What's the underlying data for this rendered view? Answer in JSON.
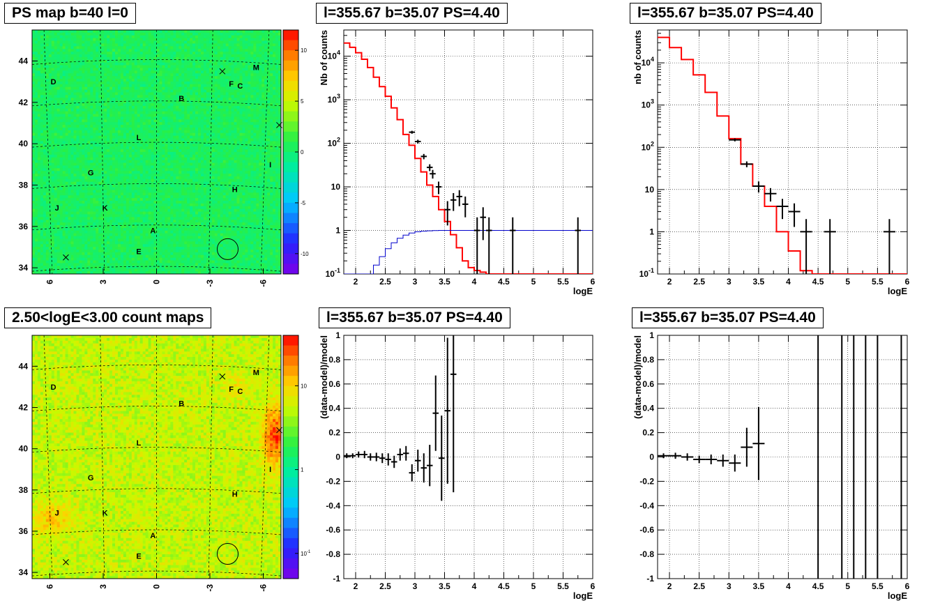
{
  "colors": {
    "data": "#000000",
    "model": "#ff0000",
    "efficiency": "#0000cc",
    "grid": "#000000",
    "circle": "#000000"
  },
  "panels": {
    "map_top_title": "PS map b=40 l=0",
    "spec_top_title": "l=355.67 b=35.07 PS=4.40",
    "spec_top2_title": "l=355.67 b=35.07 PS=4.40",
    "map_bottom_title": "2.50<logE<3.00 count maps",
    "res_title": "l=355.67 b=35.07 PS=4.40",
    "res2_title": "l=355.67 b=35.07 PS=4.40"
  },
  "chart_data": [
    {
      "id": "map_top",
      "type": "heatmap",
      "title": "PS map b=40 l=0",
      "x_ticks": [
        "6",
        "3",
        "0",
        "-3",
        "-6"
      ],
      "y_ticks": [
        "34",
        "36",
        "38",
        "40",
        "42",
        "44"
      ],
      "colorbar_ticks": [
        "10",
        "5",
        "0",
        "-5",
        "-10"
      ],
      "zlim": [
        -12,
        12
      ],
      "colormap": "rainbow",
      "labels": [
        {
          "text": "D",
          "l": 5.8,
          "b": 43.0
        },
        {
          "text": "M",
          "l": -5.6,
          "b": 43.7
        },
        {
          "text": "F",
          "l": -4.2,
          "b": 42.9
        },
        {
          "text": "C",
          "l": -4.7,
          "b": 42.8
        },
        {
          "text": "B",
          "l": -1.4,
          "b": 42.2
        },
        {
          "text": "L",
          "l": 1.0,
          "b": 40.3
        },
        {
          "text": "G",
          "l": 3.7,
          "b": 38.6
        },
        {
          "text": "I",
          "l": -6.4,
          "b": 39.0
        },
        {
          "text": "H",
          "l": -4.4,
          "b": 37.8
        },
        {
          "text": "J",
          "l": 5.6,
          "b": 36.9
        },
        {
          "text": "K",
          "l": 2.9,
          "b": 36.9
        },
        {
          "text": "A",
          "l": 0.2,
          "b": 35.8
        },
        {
          "text": "E",
          "l": 1.0,
          "b": 34.8
        }
      ],
      "markers": [
        {
          "l": -3.7,
          "b": 43.5
        },
        {
          "l": -6.9,
          "b": 40.9
        },
        {
          "l": 5.1,
          "b": 34.5
        }
      ],
      "circle": {
        "l": -4.0,
        "b": 34.9
      }
    },
    {
      "id": "spec_top",
      "type": "line",
      "title": "l=355.67 b=35.07 PS=4.40",
      "xlabel": "logE",
      "ylabel": "Nb of counts",
      "xlim": [
        1.8,
        6.0
      ],
      "ylim": [
        0.1,
        40000
      ],
      "yscale": "log",
      "grid": true,
      "x_ticks": [
        "2",
        "2.5",
        "3",
        "3.5",
        "4",
        "4.5",
        "5",
        "5.5",
        "6"
      ],
      "y_ticks": [
        "10^-1",
        "1",
        "10",
        "10^2",
        "10^3",
        "10^4"
      ],
      "series": [
        {
          "kind": "step",
          "role": "model",
          "edges": [
            1.8,
            1.9,
            2.0,
            2.1,
            2.2,
            2.3,
            2.4,
            2.5,
            2.6,
            2.7,
            2.8,
            2.9,
            3.0,
            3.1,
            3.2,
            3.3,
            3.4,
            3.5,
            3.6,
            3.7,
            3.8,
            3.9,
            4.0,
            4.1,
            4.2,
            4.3,
            6.0
          ],
          "values": [
            20000,
            16000,
            12000,
            8500,
            5500,
            3300,
            2000,
            1200,
            650,
            350,
            160,
            90,
            45,
            22,
            11,
            6,
            3,
            1.6,
            0.8,
            0.4,
            0.2,
            0.14,
            0.12,
            0.11,
            0.1,
            0.1
          ]
        },
        {
          "kind": "step",
          "role": "efficiency",
          "edges": [
            1.8,
            2.3,
            2.4,
            2.5,
            2.6,
            2.7,
            2.8,
            2.9,
            3.0,
            3.1,
            3.2,
            3.3,
            3.4,
            3.5,
            6.0
          ],
          "values": [
            0.1,
            0.16,
            0.25,
            0.38,
            0.52,
            0.66,
            0.78,
            0.87,
            0.93,
            0.96,
            0.98,
            0.99,
            1.0,
            1.0
          ]
        },
        {
          "kind": "points",
          "role": "data",
          "x": [
            2.95,
            3.05,
            3.15,
            3.25,
            3.3,
            3.4,
            3.55,
            3.65,
            3.75,
            3.85,
            4.05,
            4.15,
            4.25,
            4.65,
            5.75
          ],
          "y": [
            180,
            110,
            50,
            28,
            20,
            10,
            3,
            5,
            6,
            4,
            1,
            2,
            1,
            1,
            1
          ],
          "yerr": [
            14,
            11,
            7,
            5,
            4.5,
            3.2,
            1.7,
            2.2,
            2.4,
            2.0,
            1.0,
            1.4,
            1.0,
            1.0,
            1.0
          ],
          "xerr": 0.05
        }
      ]
    },
    {
      "id": "spec_top2",
      "type": "line",
      "title": "l=355.67 b=35.07 PS=4.40",
      "xlabel": "logE",
      "ylabel": "nb of counts",
      "xlim": [
        1.8,
        6.0
      ],
      "ylim": [
        0.1,
        60000
      ],
      "yscale": "log",
      "grid": true,
      "x_ticks": [
        "2",
        "2.5",
        "3",
        "3.5",
        "4",
        "4.5",
        "5",
        "5.5",
        "6"
      ],
      "y_ticks": [
        "10^-1",
        "1",
        "10",
        "10^2",
        "10^3",
        "10^4"
      ],
      "series": [
        {
          "kind": "step",
          "role": "model",
          "edges": [
            1.8,
            2.0,
            2.2,
            2.4,
            2.6,
            2.8,
            3.0,
            3.2,
            3.4,
            3.6,
            3.8,
            4.0,
            4.2,
            4.4,
            6.0
          ],
          "values": [
            40000,
            23000,
            12000,
            5200,
            2000,
            550,
            160,
            40,
            12,
            4,
            1,
            0.35,
            0.12,
            0.1
          ]
        },
        {
          "kind": "points",
          "role": "data",
          "x": [
            3.1,
            3.3,
            3.5,
            3.7,
            3.9,
            4.1,
            4.3,
            4.7,
            5.7
          ],
          "y": [
            150,
            40,
            12,
            8,
            4,
            3,
            1,
            1,
            1
          ],
          "yerr": [
            12,
            6.3,
            3.5,
            2.8,
            2.0,
            1.7,
            1.0,
            1.0,
            1.0
          ],
          "xerr": 0.1
        }
      ]
    },
    {
      "id": "map_bottom",
      "type": "heatmap",
      "title": "2.50<logE<3.00 count maps",
      "x_ticks": [
        "6",
        "3",
        "0",
        "-3",
        "-6"
      ],
      "y_ticks": [
        "34",
        "36",
        "38",
        "40",
        "42",
        "44"
      ],
      "colorbar_ticks": [
        "10",
        "1",
        "10^-1"
      ],
      "zlim": [
        0.05,
        40
      ],
      "zscale": "log",
      "colormap": "rainbow",
      "labels": [
        {
          "text": "D",
          "l": 5.8,
          "b": 43.0
        },
        {
          "text": "M",
          "l": -5.6,
          "b": 43.7
        },
        {
          "text": "F",
          "l": -4.2,
          "b": 42.9
        },
        {
          "text": "C",
          "l": -4.7,
          "b": 42.8
        },
        {
          "text": "B",
          "l": -1.4,
          "b": 42.2
        },
        {
          "text": "L",
          "l": 1.0,
          "b": 40.3
        },
        {
          "text": "G",
          "l": 3.7,
          "b": 38.6
        },
        {
          "text": "I",
          "l": -6.4,
          "b": 39.0
        },
        {
          "text": "H",
          "l": -4.4,
          "b": 37.8
        },
        {
          "text": "J",
          "l": 5.6,
          "b": 36.9
        },
        {
          "text": "K",
          "l": 2.9,
          "b": 36.9
        },
        {
          "text": "A",
          "l": 0.2,
          "b": 35.8
        },
        {
          "text": "E",
          "l": 1.0,
          "b": 34.8
        }
      ],
      "markers": [
        {
          "l": -3.7,
          "b": 43.5
        },
        {
          "l": -6.9,
          "b": 40.9
        },
        {
          "l": 5.1,
          "b": 34.5
        }
      ],
      "circle": {
        "l": -4.0,
        "b": 34.9
      }
    },
    {
      "id": "res",
      "type": "scatter",
      "title": "l=355.67 b=35.07 PS=4.40",
      "xlabel": "logE",
      "ylabel": "(data-model)/model",
      "xlim": [
        1.8,
        6.0
      ],
      "ylim": [
        -1,
        1
      ],
      "grid": true,
      "x_ticks": [
        "2",
        "2.5",
        "3",
        "3.5",
        "4",
        "4.5",
        "5",
        "5.5",
        "6"
      ],
      "y_ticks": [
        "-1",
        "-0.8",
        "-0.6",
        "-0.4",
        "-0.2",
        "0",
        "0.2",
        "0.4",
        "0.6",
        "0.8",
        "1"
      ],
      "series": [
        {
          "kind": "points",
          "role": "data",
          "x": [
            1.85,
            1.95,
            2.05,
            2.15,
            2.25,
            2.35,
            2.45,
            2.55,
            2.65,
            2.75,
            2.85,
            2.95,
            3.05,
            3.15,
            3.25,
            3.35,
            3.45,
            3.55,
            3.65
          ],
          "y": [
            0.01,
            0.01,
            0.02,
            0.02,
            0.0,
            0.0,
            -0.01,
            -0.02,
            -0.04,
            0.02,
            0.03,
            -0.13,
            -0.03,
            -0.09,
            -0.07,
            0.36,
            -0.01,
            0.38,
            0.68
          ],
          "yerr": [
            0.02,
            0.02,
            0.025,
            0.03,
            0.03,
            0.035,
            0.04,
            0.05,
            0.05,
            0.05,
            0.06,
            0.07,
            0.09,
            0.12,
            0.17,
            0.31,
            0.35,
            0.6,
            0.97
          ],
          "xerr": 0.05
        }
      ]
    },
    {
      "id": "res2",
      "type": "scatter",
      "title": "l=355.67 b=35.07 PS=4.40",
      "xlabel": "logE",
      "ylabel": "(data-model)/model",
      "xlim": [
        1.8,
        6.0
      ],
      "ylim": [
        -1,
        1
      ],
      "grid": true,
      "x_ticks": [
        "2",
        "2.5",
        "3",
        "3.5",
        "4",
        "4.5",
        "5",
        "5.5",
        "6"
      ],
      "y_ticks": [
        "-1",
        "-0.8",
        "-0.6",
        "-0.4",
        "-0.2",
        "0",
        "0.2",
        "0.4",
        "0.6",
        "0.8",
        "1"
      ],
      "series": [
        {
          "kind": "points",
          "role": "data",
          "x": [
            1.9,
            2.1,
            2.3,
            2.5,
            2.7,
            2.9,
            3.1,
            3.3,
            3.5
          ],
          "y": [
            0.01,
            0.01,
            0.0,
            -0.02,
            -0.02,
            -0.03,
            -0.05,
            0.08,
            0.11
          ],
          "yerr": [
            0.02,
            0.025,
            0.03,
            0.03,
            0.04,
            0.05,
            0.07,
            0.16,
            0.3
          ],
          "xerr": 0.1
        },
        {
          "kind": "vlines",
          "role": "data",
          "x": [
            4.5,
            4.9,
            5.1,
            5.3,
            5.5,
            5.9
          ]
        }
      ]
    }
  ]
}
